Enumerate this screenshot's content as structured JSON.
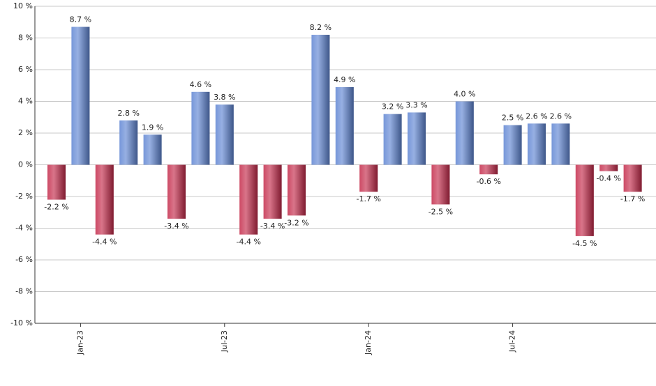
{
  "chart_data": {
    "type": "bar",
    "categories": [
      null,
      "Jan-23",
      null,
      null,
      null,
      null,
      null,
      "Jul-23",
      null,
      null,
      null,
      null,
      null,
      "Jan-24",
      null,
      null,
      null,
      null,
      null,
      "Jul-24",
      null,
      null,
      null,
      null,
      null
    ],
    "values": [
      -2.2,
      8.7,
      -4.4,
      2.8,
      1.9,
      -3.4,
      4.6,
      3.8,
      -4.4,
      -3.4,
      -3.2,
      8.2,
      4.9,
      -1.7,
      3.2,
      3.3,
      -2.5,
      4.0,
      -0.6,
      2.5,
      2.6,
      2.6,
      -4.5,
      -0.4,
      -1.7
    ],
    "value_labels": [
      "-2.2 %",
      "8.7 %",
      "-4.4 %",
      "2.8 %",
      "1.9 %",
      "-3.4 %",
      "4.6 %",
      "3.8 %",
      "-4.4 %",
      "-3.4 %",
      "-3.2 %",
      "8.2 %",
      "4.9 %",
      "-1.7 %",
      "3.2 %",
      "3.3 %",
      "-2.5 %",
      "4.0 %",
      "-0.6 %",
      "2.5 %",
      "2.6 %",
      "2.6 %",
      "-4.5 %",
      "-0.4 %",
      "-1.7 %"
    ],
    "positive_color": "#5f85d3",
    "negative_color": "#c42a4a",
    "ylim": [
      -10,
      10
    ],
    "yticks": [
      {
        "value": -10,
        "label": "-10 %"
      },
      {
        "value": -8,
        "label": "-8 %"
      },
      {
        "value": -6,
        "label": "-6 %"
      },
      {
        "value": -4,
        "label": "-4 %"
      },
      {
        "value": -2,
        "label": "-2 %"
      },
      {
        "value": 0,
        "label": "0 %"
      },
      {
        "value": 2,
        "label": "2 %"
      },
      {
        "value": 4,
        "label": "4 %"
      },
      {
        "value": 6,
        "label": "6 %"
      },
      {
        "value": 8,
        "label": "8 %"
      },
      {
        "value": 10,
        "label": "10 %"
      }
    ],
    "grid": true
  }
}
